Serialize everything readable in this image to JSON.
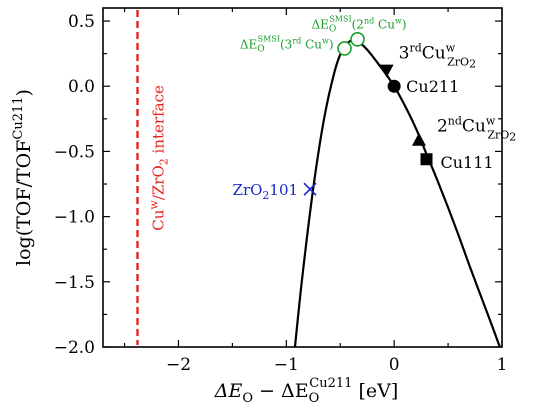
{
  "chart_data": {
    "type": "scatter",
    "xlim": [
      -2.7,
      1.0
    ],
    "ylim": [
      -2.0,
      0.6
    ],
    "x_ticks": [
      -2,
      -1,
      0,
      1
    ],
    "y_ticks": [
      0.5,
      0.0,
      -0.5,
      -1.0,
      -1.5,
      -2.0
    ],
    "x_tick_labels": [
      "−2",
      "−1",
      "0",
      "1"
    ],
    "y_tick_labels": [
      "0.5",
      "0.0",
      "−0.5",
      "−1.0",
      "−1.5",
      "−2.0"
    ],
    "xlabel": {
      "main": "ΔE",
      "sub1": "O",
      "mid": " − ΔE",
      "sub2": "O",
      "sup2": "Cu211",
      "unit": " [eV]"
    },
    "ylabel": {
      "main": "log(TOF/TOF",
      "sup": "Cu211",
      "close": ")"
    },
    "volcano_curve": {
      "x": [
        -0.92,
        -0.85,
        -0.75,
        -0.65,
        -0.55,
        -0.48,
        -0.42,
        -0.35,
        -0.25,
        -0.1,
        0.0,
        0.1,
        0.2,
        0.3,
        0.4,
        0.5,
        0.6,
        0.7,
        0.8,
        0.9,
        0.98
      ],
      "y": [
        -2.0,
        -1.45,
        -0.78,
        -0.25,
        0.12,
        0.28,
        0.34,
        0.35,
        0.28,
        0.12,
        0.0,
        -0.15,
        -0.32,
        -0.52,
        -0.72,
        -0.93,
        -1.15,
        -1.38,
        -1.6,
        -1.82,
        -2.0
      ],
      "color": "#000000"
    },
    "interface_line": {
      "x": -2.38,
      "color": "#e8231f",
      "label_main": "Cu",
      "label_sup": "w",
      "label_mid": "/ZrO",
      "label_sub": "2",
      "label_end": " interface"
    },
    "points": [
      {
        "name": "Cu211",
        "x": 0.0,
        "y": 0.0,
        "marker": "circle",
        "color": "#000000",
        "label": "Cu211"
      },
      {
        "name": "Cu111",
        "x": 0.3,
        "y": -0.56,
        "marker": "square",
        "color": "#000000",
        "label": "Cu111"
      },
      {
        "name": "3rd CuW ZrO2",
        "x": -0.07,
        "y": 0.12,
        "marker": "triangle-down",
        "color": "#000000",
        "label_main": "3",
        "label_sup": "rd",
        "label_cu": "Cu",
        "label_sup2": "w",
        "label_sub2": "ZrO",
        "label_sub3": "2"
      },
      {
        "name": "2nd CuW ZrO2",
        "x": 0.23,
        "y": -0.41,
        "marker": "triangle-up",
        "color": "#000000",
        "label_main": "2",
        "label_sup": "nd",
        "label_cu": "Cu",
        "label_sup2": "w",
        "label_sub2": "ZrO",
        "label_sub3": "2"
      },
      {
        "name": "ZrO2 101",
        "x": -0.78,
        "y": -0.79,
        "marker": "x",
        "color": "#1a28c8",
        "label_main": "ZrO",
        "label_sub": "2",
        "label_end": "101"
      },
      {
        "name": "SMSI 3rd Cuw",
        "x": -0.46,
        "y": 0.29,
        "marker": "open-circle",
        "color": "#1a9e2a",
        "label_pre": "ΔE",
        "label_sub": "O",
        "label_sup": "SMSI",
        "label_text": "(3",
        "label_sup2": "rd",
        "label_text2": " Cu",
        "label_sup3": "w",
        "label_text3": ")"
      },
      {
        "name": "SMSI 2nd Cuw",
        "x": -0.34,
        "y": 0.36,
        "marker": "open-circle",
        "color": "#1a9e2a",
        "label_pre": "ΔE",
        "label_sub": "O",
        "label_sup": "SMSI",
        "label_text": "(2",
        "label_sup2": "nd",
        "label_text2": " Cu",
        "label_sup3": "w",
        "label_text3": ")"
      }
    ]
  }
}
